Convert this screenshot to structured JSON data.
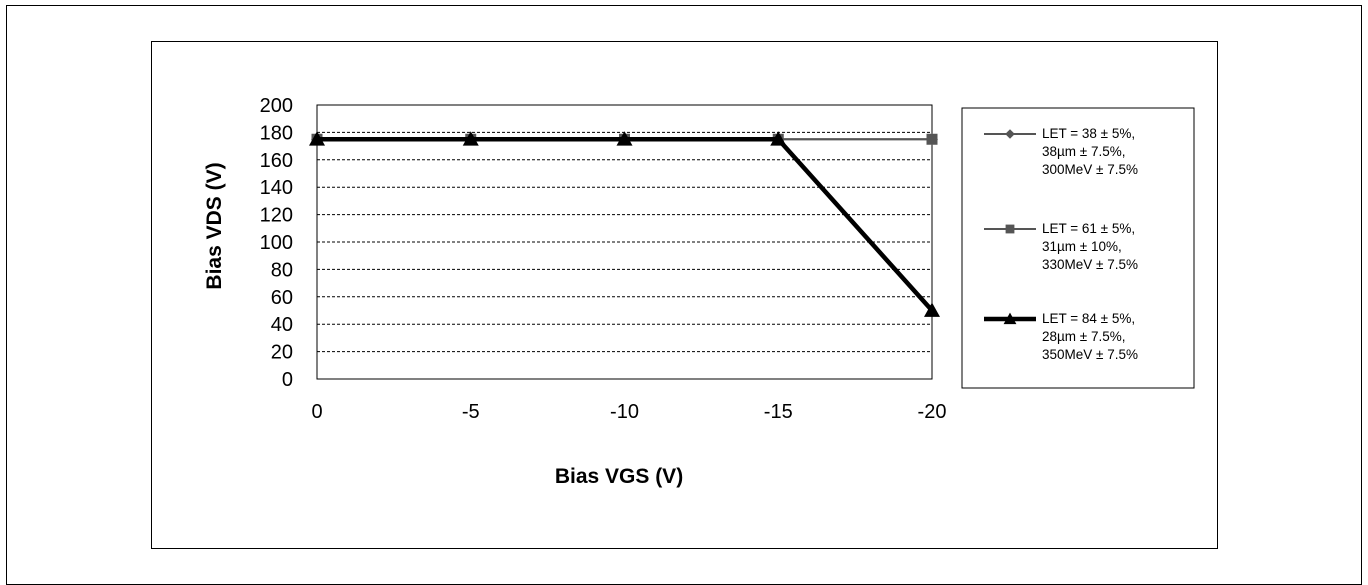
{
  "chart_data": {
    "type": "line",
    "title": "",
    "xlabel": "Bias VGS (V)",
    "ylabel": "Bias VDS (V)",
    "x": [
      0,
      -5,
      -10,
      -15,
      -20
    ],
    "x_ticks": [
      "0",
      "-5",
      "-10",
      "-15",
      "-20"
    ],
    "ylim": [
      0,
      200
    ],
    "y_ticks": [
      "0",
      "20",
      "40",
      "60",
      "80",
      "100",
      "120",
      "140",
      "160",
      "180",
      "200"
    ],
    "grid": "horizontal dashed",
    "legend_position": "right",
    "series": [
      {
        "name": "LET = 38 ± 5%, 38µm ± 7.5%, 300MeV ± 7.5%",
        "legend_lines": [
          "LET = 38 ± 5%,",
          "38µm ± 7.5%,",
          "300MeV ± 7.5%"
        ],
        "marker": "diamond",
        "color": "#555555",
        "values": [
          175,
          175,
          175,
          175,
          175
        ]
      },
      {
        "name": "LET = 61 ± 5%, 31µm ± 10%, 330MeV ± 7.5%",
        "legend_lines": [
          "LET = 61 ± 5%,",
          "31µm ± 10%,",
          "330MeV ± 7.5%"
        ],
        "marker": "square",
        "color": "#555555",
        "values": [
          175,
          175,
          175,
          175,
          175
        ]
      },
      {
        "name": "LET = 84 ± 5%, 28µm ± 7.5%, 350MeV ± 7.5%",
        "legend_lines": [
          "LET = 84 ± 5%,",
          "28µm ± 7.5%,",
          "350MeV ± 7.5%"
        ],
        "marker": "triangle",
        "color": "#000000",
        "values": [
          175,
          175,
          175,
          175,
          50
        ]
      }
    ]
  }
}
